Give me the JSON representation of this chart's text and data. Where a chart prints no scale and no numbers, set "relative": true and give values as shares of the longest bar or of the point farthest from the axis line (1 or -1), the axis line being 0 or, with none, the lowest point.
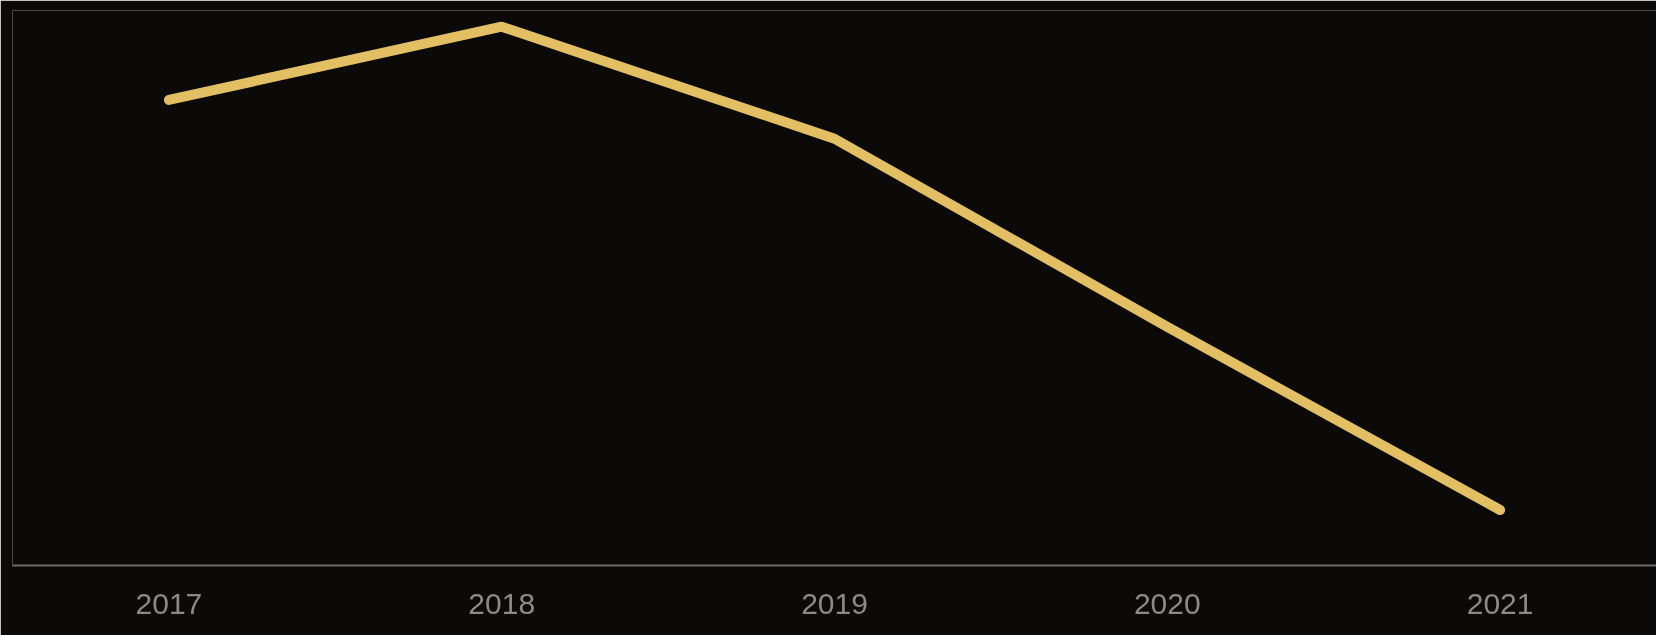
{
  "chart_data": {
    "type": "line",
    "relative": true,
    "categories": [
      "2017",
      "2018",
      "2019",
      "2020",
      "2021"
    ],
    "series": [
      {
        "color": "#e2bf62",
        "values": [
          0.864,
          1,
          0.792,
          0.443,
          0.103
        ]
      }
    ],
    "marker": "none",
    "line_style": "solid",
    "tick_labels": "x"
  }
}
